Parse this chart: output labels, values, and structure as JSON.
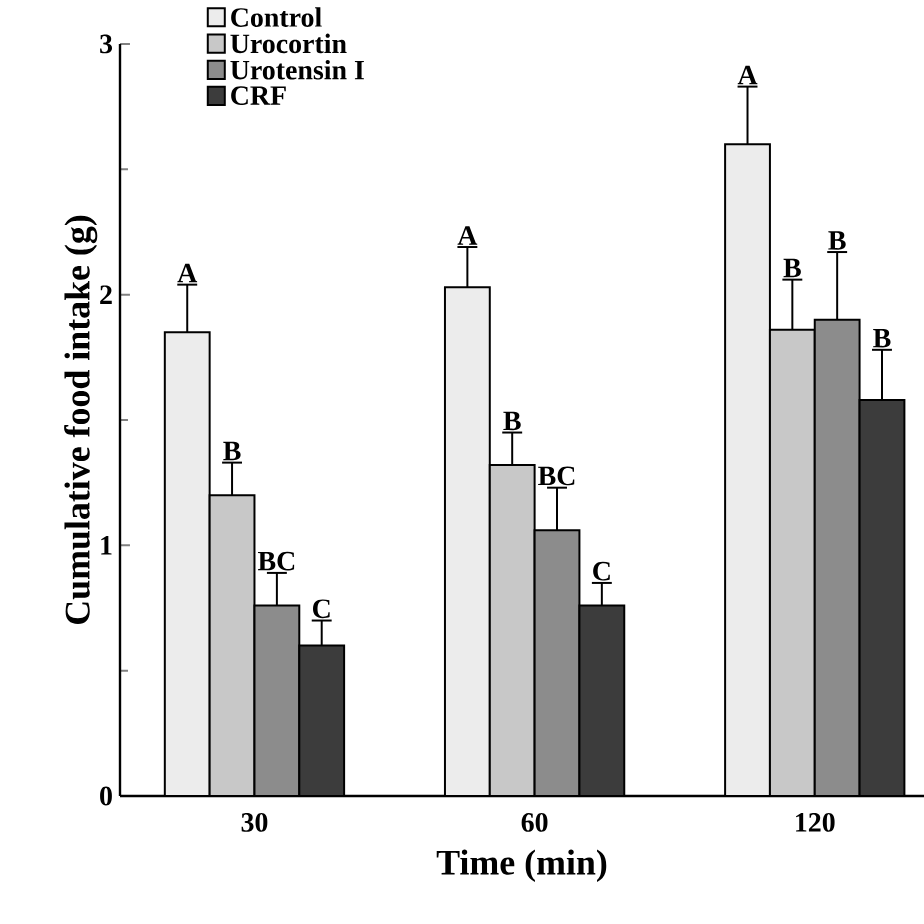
{
  "chart_data": {
    "type": "bar",
    "xlabel": "Time (min)",
    "ylabel": "Cumulative food intake (g)",
    "categories": [
      "30",
      "60",
      "120"
    ],
    "ylim": [
      0,
      3
    ],
    "yticks": [
      0,
      1,
      2,
      3
    ],
    "legend": "top left",
    "grid": false,
    "series": [
      {
        "name": "Control",
        "color": "#ececec",
        "values": [
          1.85,
          2.03,
          2.6
        ],
        "errors": [
          [
            1.85,
            2.04
          ],
          [
            2.03,
            2.19
          ],
          [
            2.6,
            2.83
          ]
        ],
        "value_labels": [
          "A",
          "A",
          "A"
        ]
      },
      {
        "name": "Urocortin",
        "color": "#c8c8c8",
        "values": [
          1.2,
          1.32,
          1.86
        ],
        "errors": [
          [
            1.2,
            1.33
          ],
          [
            1.32,
            1.45
          ],
          [
            1.86,
            2.06
          ]
        ],
        "value_labels": [
          "B",
          "B",
          "B"
        ]
      },
      {
        "name": "Urotensin I",
        "color": "#8c8c8c",
        "values": [
          0.76,
          1.06,
          1.9
        ],
        "errors": [
          [
            0.76,
            0.89
          ],
          [
            1.06,
            1.23
          ],
          [
            1.9,
            2.17
          ]
        ],
        "value_labels": [
          "BC",
          "BC",
          "B"
        ]
      },
      {
        "name": "CRF",
        "color": "#3c3c3c",
        "values": [
          0.6,
          0.76,
          1.58
        ],
        "errors": [
          [
            0.6,
            0.7
          ],
          [
            0.76,
            0.85
          ],
          [
            1.58,
            1.78
          ]
        ],
        "value_labels": [
          "C",
          "C",
          "B"
        ]
      }
    ]
  }
}
